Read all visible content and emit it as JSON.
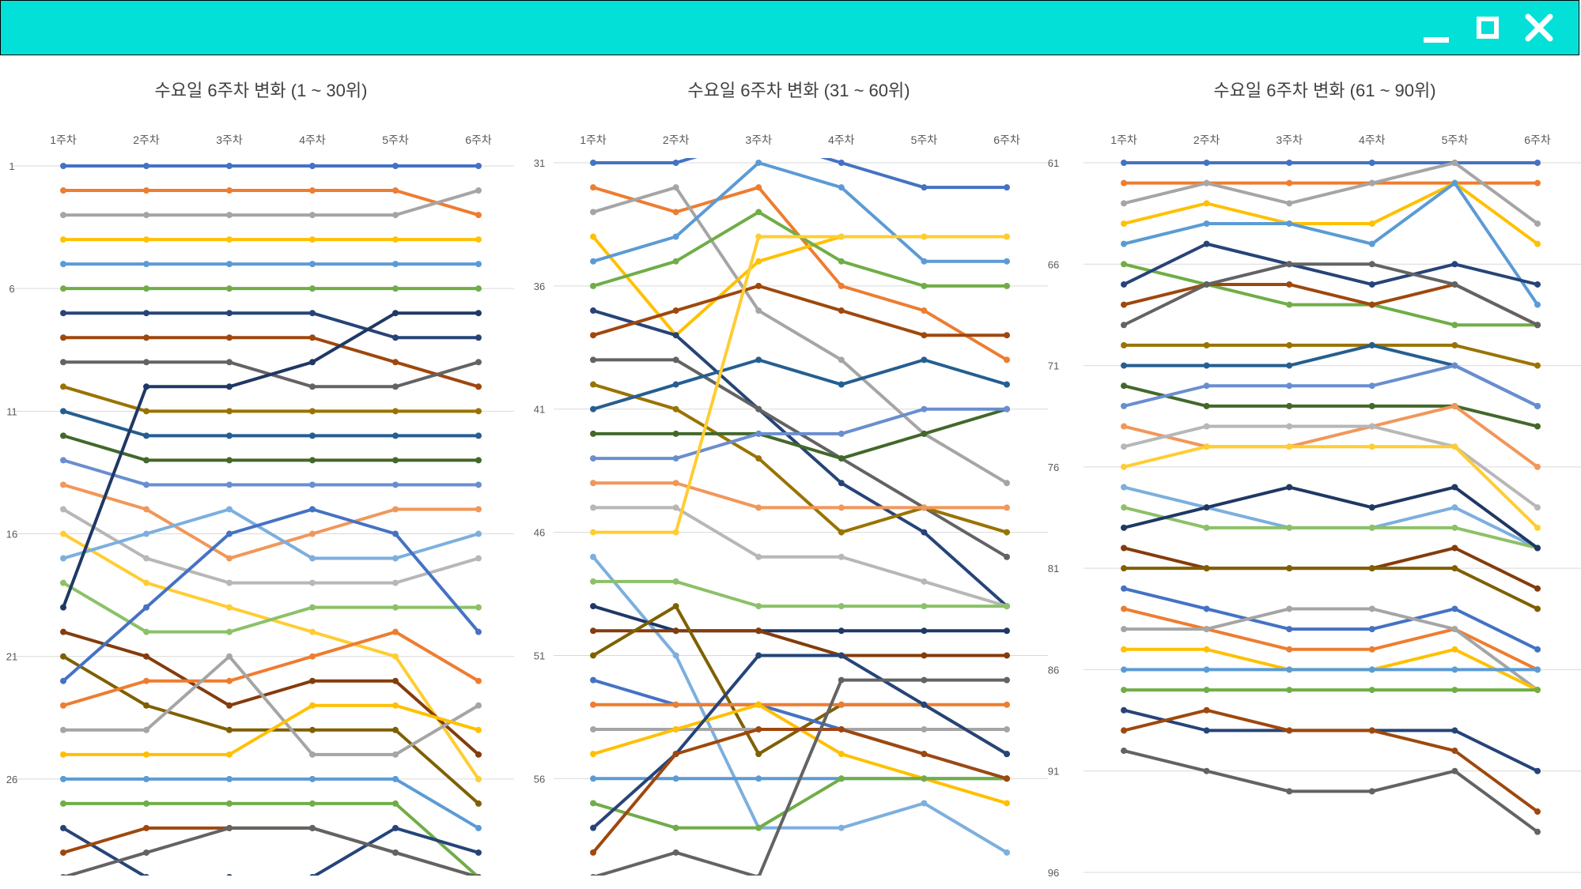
{
  "window": {
    "controls": {
      "minimize_icon": "minimize-icon",
      "maximize_icon": "maximize-icon",
      "close_icon": "close-icon"
    },
    "titlebar_color": "#02e0d8"
  },
  "palette": [
    "#4472c4",
    "#ed7d31",
    "#a5a5a5",
    "#ffc000",
    "#5b9bd5",
    "#70ad47",
    "#264478",
    "#9e480e",
    "#636363",
    "#997300",
    "#255e91",
    "#43682b",
    "#698ed0",
    "#f1975a",
    "#b7b7b7",
    "#ffcd33",
    "#7cafdd",
    "#8cc168",
    "#1f3864",
    "#843c0c",
    "#7f6000"
  ],
  "chart_data": [
    {
      "type": "line",
      "title": "수요일 6주차 변화 (1 ~ 30위)",
      "categories": [
        "1주차",
        "2주차",
        "3주차",
        "4주차",
        "5주차",
        "6주차"
      ],
      "ylim": [
        1,
        30
      ],
      "y_inverted": true,
      "yticks": [
        1,
        6,
        11,
        16,
        21,
        26
      ],
      "grid": true,
      "series": [
        {
          "values": [
            1,
            1,
            1,
            1,
            1,
            1
          ]
        },
        {
          "values": [
            2,
            2,
            2,
            2,
            2,
            3
          ]
        },
        {
          "values": [
            3,
            3,
            3,
            3,
            3,
            2
          ]
        },
        {
          "values": [
            4,
            4,
            4,
            4,
            4,
            4
          ]
        },
        {
          "values": [
            5,
            5,
            5,
            5,
            5,
            5
          ]
        },
        {
          "values": [
            6,
            6,
            6,
            6,
            6,
            6
          ]
        },
        {
          "values": [
            7,
            7,
            7,
            7,
            8,
            8
          ]
        },
        {
          "values": [
            8,
            8,
            8,
            8,
            9,
            10
          ]
        },
        {
          "values": [
            9,
            9,
            9,
            10,
            10,
            9
          ]
        },
        {
          "values": [
            10,
            11,
            11,
            11,
            11,
            11
          ]
        },
        {
          "values": [
            11,
            12,
            12,
            12,
            12,
            12
          ]
        },
        {
          "values": [
            12,
            13,
            13,
            13,
            13,
            13
          ]
        },
        {
          "values": [
            13,
            14,
            14,
            14,
            14,
            14
          ]
        },
        {
          "values": [
            14,
            15,
            17,
            16,
            15,
            15
          ]
        },
        {
          "values": [
            15,
            17,
            18,
            18,
            18,
            17
          ]
        },
        {
          "values": [
            16,
            18,
            19,
            20,
            21,
            26
          ]
        },
        {
          "values": [
            17,
            16,
            15,
            17,
            17,
            16
          ]
        },
        {
          "values": [
            18,
            20,
            20,
            19,
            19,
            19
          ]
        },
        {
          "values": [
            19,
            10,
            10,
            9,
            7,
            7
          ]
        },
        {
          "values": [
            20,
            21,
            23,
            22,
            22,
            25
          ]
        },
        {
          "values": [
            21,
            23,
            24,
            24,
            24,
            27
          ]
        },
        {
          "values": [
            22,
            19,
            16,
            15,
            16,
            20
          ]
        },
        {
          "values": [
            23,
            22,
            22,
            21,
            20,
            22
          ]
        },
        {
          "values": [
            24,
            24,
            21,
            25,
            25,
            23
          ]
        },
        {
          "values": [
            25,
            25,
            25,
            23,
            23,
            24
          ]
        },
        {
          "values": [
            26,
            26,
            26,
            26,
            26,
            28
          ]
        },
        {
          "values": [
            27,
            27,
            27,
            27,
            27,
            30
          ]
        },
        {
          "values": [
            28,
            30,
            30,
            30,
            28,
            29
          ]
        },
        {
          "values": [
            29,
            28,
            28,
            28,
            29,
            30
          ]
        },
        {
          "values": [
            30,
            29,
            28,
            28,
            29,
            30
          ]
        }
      ]
    },
    {
      "type": "line",
      "title": "수요일 6주차 변화 (31 ~ 60위)",
      "categories": [
        "1주차",
        "2주차",
        "3주차",
        "4주차",
        "5주차",
        "6주차"
      ],
      "ylim": [
        31,
        60
      ],
      "y_inverted": true,
      "yticks": [
        31,
        36,
        41,
        46,
        51,
        56
      ],
      "grid": true,
      "series": [
        {
          "values": [
            31,
            31,
            30,
            31,
            32,
            32
          ]
        },
        {
          "values": [
            32,
            33,
            32,
            36,
            37,
            39
          ]
        },
        {
          "values": [
            33,
            32,
            37,
            39,
            42,
            44
          ]
        },
        {
          "values": [
            34,
            38,
            35,
            34,
            34,
            34
          ]
        },
        {
          "values": [
            35,
            34,
            31,
            32,
            35,
            35
          ]
        },
        {
          "values": [
            36,
            35,
            33,
            35,
            36,
            36
          ]
        },
        {
          "values": [
            37,
            38,
            41,
            44,
            46,
            49
          ]
        },
        {
          "values": [
            38,
            37,
            36,
            37,
            38,
            38
          ]
        },
        {
          "values": [
            39,
            39,
            41,
            43,
            45,
            47
          ]
        },
        {
          "values": [
            40,
            41,
            43,
            46,
            45,
            46
          ]
        },
        {
          "values": [
            41,
            40,
            39,
            40,
            39,
            40
          ]
        },
        {
          "values": [
            42,
            42,
            42,
            43,
            42,
            41
          ]
        },
        {
          "values": [
            43,
            43,
            42,
            42,
            41,
            41
          ]
        },
        {
          "values": [
            44,
            44,
            45,
            45,
            45,
            45
          ]
        },
        {
          "values": [
            45,
            45,
            47,
            47,
            48,
            49
          ]
        },
        {
          "values": [
            46,
            46,
            34,
            34,
            34,
            34
          ]
        },
        {
          "values": [
            47,
            51,
            58,
            58,
            57,
            59
          ]
        },
        {
          "values": [
            48,
            48,
            49,
            49,
            49,
            49
          ]
        },
        {
          "values": [
            49,
            50,
            50,
            50,
            50,
            50
          ]
        },
        {
          "values": [
            50,
            50,
            50,
            51,
            51,
            51
          ]
        },
        {
          "values": [
            51,
            49,
            55,
            53,
            53,
            55
          ]
        },
        {
          "values": [
            52,
            53,
            53,
            54,
            55,
            56
          ]
        },
        {
          "values": [
            53,
            53,
            53,
            53,
            53,
            53
          ]
        },
        {
          "values": [
            54,
            54,
            54,
            54,
            54,
            54
          ]
        },
        {
          "values": [
            55,
            54,
            53,
            55,
            56,
            57
          ]
        },
        {
          "values": [
            56,
            56,
            56,
            56,
            56,
            56
          ]
        },
        {
          "values": [
            57,
            58,
            58,
            56,
            56,
            56
          ]
        },
        {
          "values": [
            58,
            55,
            51,
            51,
            53,
            55
          ]
        },
        {
          "values": [
            59,
            55,
            54,
            54,
            55,
            56
          ]
        },
        {
          "values": [
            60,
            59,
            60,
            52,
            52,
            52
          ]
        }
      ]
    },
    {
      "type": "line",
      "title": "수요일 6주차 변화 (61 ~ 90위)",
      "categories": [
        "1주차",
        "2주차",
        "3주차",
        "4주차",
        "5주차",
        "6주차"
      ],
      "ylim": [
        61,
        96
      ],
      "y_inverted": true,
      "yticks": [
        61,
        66,
        71,
        76,
        81,
        86,
        91,
        96
      ],
      "grid": true,
      "series": [
        {
          "values": [
            61,
            61,
            61,
            61,
            61,
            61
          ]
        },
        {
          "values": [
            62,
            62,
            62,
            62,
            62,
            62
          ]
        },
        {
          "values": [
            63,
            62,
            63,
            62,
            61,
            64
          ]
        },
        {
          "values": [
            64,
            63,
            64,
            64,
            62,
            65
          ]
        },
        {
          "values": [
            65,
            64,
            64,
            65,
            62,
            68
          ]
        },
        {
          "values": [
            66,
            67,
            68,
            68,
            69,
            69
          ]
        },
        {
          "values": [
            67,
            65,
            66,
            67,
            66,
            67
          ]
        },
        {
          "values": [
            68,
            67,
            67,
            68,
            67,
            69
          ]
        },
        {
          "values": [
            69,
            67,
            66,
            66,
            67,
            69
          ]
        },
        {
          "values": [
            70,
            70,
            70,
            70,
            70,
            71
          ]
        },
        {
          "values": [
            71,
            71,
            71,
            70,
            71,
            73
          ]
        },
        {
          "values": [
            72,
            73,
            73,
            73,
            73,
            74
          ]
        },
        {
          "values": [
            73,
            72,
            72,
            72,
            71,
            73
          ]
        },
        {
          "values": [
            74,
            75,
            75,
            74,
            73,
            76
          ]
        },
        {
          "values": [
            75,
            74,
            74,
            74,
            75,
            78
          ]
        },
        {
          "values": [
            76,
            75,
            75,
            75,
            75,
            79
          ]
        },
        {
          "values": [
            77,
            78,
            79,
            79,
            78,
            80
          ]
        },
        {
          "values": [
            78,
            79,
            79,
            79,
            79,
            80
          ]
        },
        {
          "values": [
            79,
            78,
            77,
            78,
            77,
            80
          ]
        },
        {
          "values": [
            80,
            81,
            81,
            81,
            80,
            82
          ]
        },
        {
          "values": [
            81,
            81,
            81,
            81,
            81,
            83
          ]
        },
        {
          "values": [
            82,
            83,
            84,
            84,
            83,
            85
          ]
        },
        {
          "values": [
            83,
            84,
            85,
            85,
            84,
            86
          ]
        },
        {
          "values": [
            84,
            84,
            83,
            83,
            84,
            87
          ]
        },
        {
          "values": [
            85,
            85,
            86,
            86,
            85,
            87
          ]
        },
        {
          "values": [
            86,
            86,
            86,
            86,
            86,
            86
          ]
        },
        {
          "values": [
            87,
            87,
            87,
            87,
            87,
            87
          ]
        },
        {
          "values": [
            88,
            89,
            89,
            89,
            89,
            91
          ]
        },
        {
          "values": [
            89,
            88,
            89,
            89,
            90,
            93
          ]
        },
        {
          "values": [
            90,
            91,
            92,
            92,
            91,
            94
          ]
        }
      ]
    }
  ]
}
